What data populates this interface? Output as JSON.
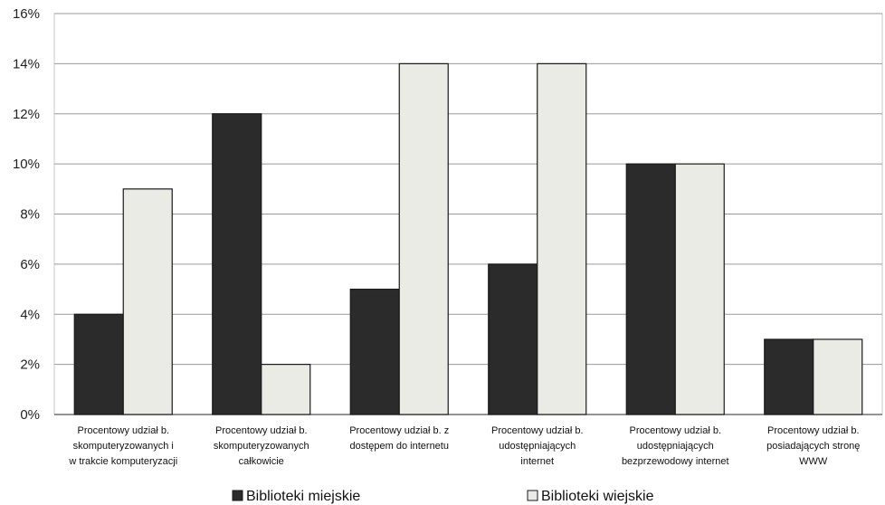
{
  "chart_data": {
    "type": "bar",
    "categories": [
      [
        "Procentowy udział b.",
        "skomputeryzowanych i",
        "w trakcie komputeryzacji"
      ],
      [
        "Procentowy udział b.",
        "skomputeryzowanych",
        "całkowicie"
      ],
      [
        "Procentowy udział b. z",
        "dostępem do internetu"
      ],
      [
        "Procentowy udział b.",
        "udostępniających",
        "internet"
      ],
      [
        "Procentowy udział b.",
        "udostępniających",
        "bezprzewodowy internet"
      ],
      [
        "Procentowy udział b.",
        "posiadających stronę",
        "WWW"
      ]
    ],
    "series": [
      {
        "name": "Biblioteki miejskie",
        "values": [
          4,
          12,
          5,
          6,
          10,
          3
        ],
        "color": "#2b2b2b"
      },
      {
        "name": "Biblioteki wiejskie",
        "values": [
          9,
          2,
          14,
          14,
          10,
          3
        ],
        "color": "#ebebe6"
      }
    ],
    "y_ticks": [
      "0%",
      "2%",
      "4%",
      "6%",
      "8%",
      "10%",
      "12%",
      "14%",
      "16%"
    ],
    "ylim": [
      0,
      16
    ],
    "grid": true,
    "legend_position": "bottom",
    "title": "",
    "xlabel": "",
    "ylabel": ""
  }
}
